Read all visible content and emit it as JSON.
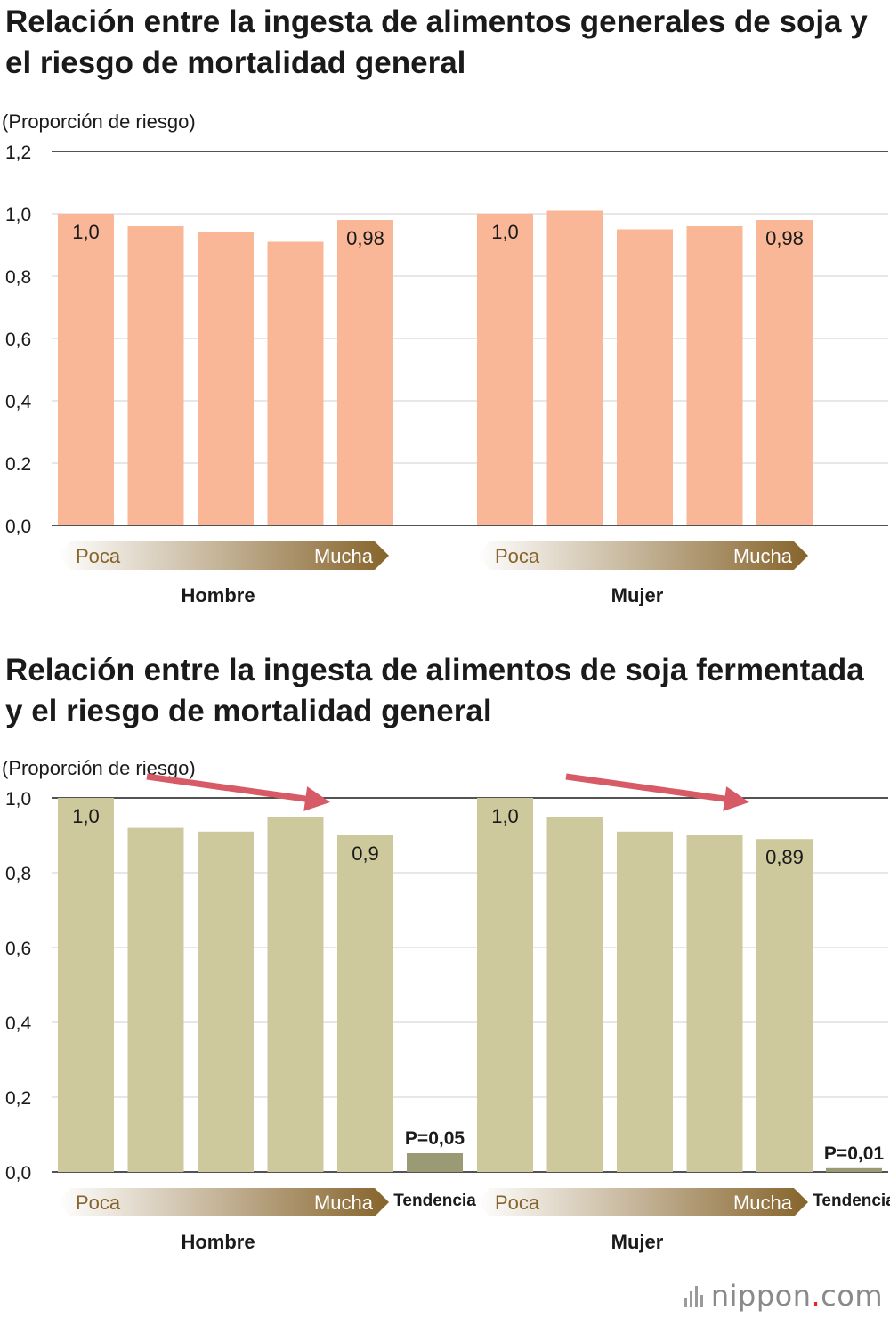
{
  "charts": [
    {
      "title": "Relación entre la ingesta de alimentos generales de soja y el riesgo de mortalidad general",
      "ylabel": "(Proporción de riesgo)",
      "ytick_labels": [
        "0,0",
        "0.2",
        "0,4",
        "0,6",
        "0,8",
        "1,0",
        "1,2"
      ]
    },
    {
      "title": "Relación entre la ingesta de alimentos de soja fermentada y el riesgo de mortalidad general",
      "ylabel": "(Proporción de riesgo)",
      "ytick_labels": [
        "0,0",
        "0,2",
        "0,4",
        "0,6",
        "0,8",
        "1,0"
      ]
    }
  ],
  "scale": {
    "low": "Poca",
    "high": "Mucha"
  },
  "trend_label": "Tendencia",
  "logo": {
    "name": "nippon",
    "dot": ".",
    "suffix": "com"
  },
  "colors": {
    "bars_general": "#f9b797",
    "bars_fermented": "#cdc99c",
    "trend_bar": "#9a9a74",
    "arrow": "#d75b66",
    "gradient_dark": "#86642b"
  },
  "chart_data": [
    {
      "type": "bar",
      "title": "Relación entre la ingesta de alimentos generales de soja y el riesgo de mortalidad general",
      "ylabel": "(Proporción de riesgo)",
      "ylim": [
        0,
        1.2
      ],
      "yticks": [
        0,
        0.2,
        0.4,
        0.6,
        0.8,
        1.0,
        1.2
      ],
      "grid": true,
      "groups": [
        {
          "name": "Hombre",
          "values": [
            1.0,
            0.96,
            0.94,
            0.91,
            0.98
          ],
          "labels": [
            "1,0",
            "",
            "",
            "",
            "0,98"
          ]
        },
        {
          "name": "Mujer",
          "values": [
            1.0,
            1.01,
            0.95,
            0.96,
            0.98
          ],
          "labels": [
            "1,0",
            "",
            "",
            "",
            "0,98"
          ]
        }
      ]
    },
    {
      "type": "bar",
      "title": "Relación entre la ingesta de alimentos de soja fermentada y el riesgo de mortalidad general",
      "ylabel": "(Proporción de riesgo)",
      "ylim": [
        0,
        1.0
      ],
      "yticks": [
        0,
        0.2,
        0.4,
        0.6,
        0.8,
        1.0
      ],
      "grid": true,
      "groups": [
        {
          "name": "Hombre",
          "values": [
            1.0,
            0.92,
            0.91,
            0.95,
            0.9
          ],
          "labels": [
            "1,0",
            "",
            "",
            "",
            "0,9"
          ],
          "trend": {
            "value": 0.05,
            "label": "P=0,05"
          }
        },
        {
          "name": "Mujer",
          "values": [
            1.0,
            0.95,
            0.91,
            0.9,
            0.89
          ],
          "labels": [
            "1,0",
            "",
            "",
            "",
            "0,89"
          ],
          "trend": {
            "value": 0.01,
            "label": "P=0,01"
          }
        }
      ]
    }
  ]
}
